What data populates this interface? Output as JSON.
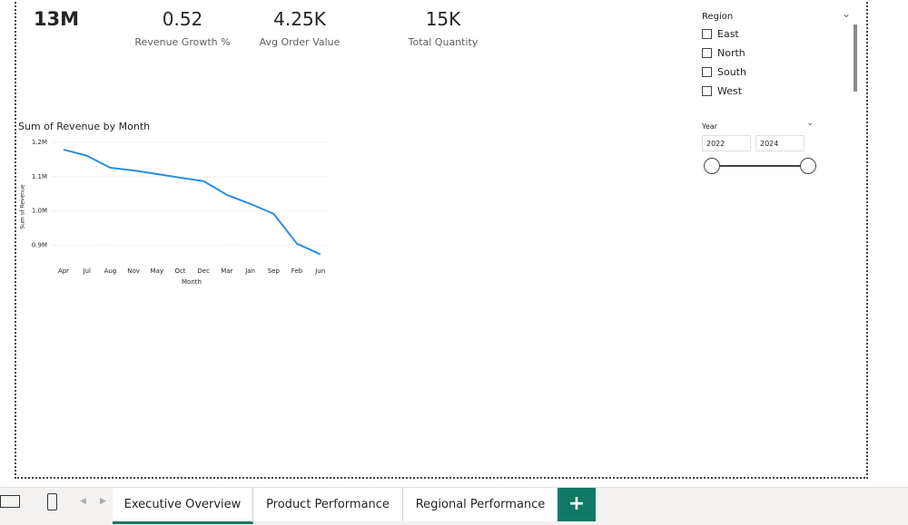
{
  "cards": [
    {
      "value": "13M"
    },
    {
      "value": "0.52",
      "label": "Revenue Growth %"
    },
    {
      "value": "4.25K",
      "label": "Avg Order Value"
    },
    {
      "value": "15K",
      "label": "Total Quantity"
    }
  ],
  "region_slicer": {
    "title": "Region",
    "options": [
      "East",
      "North",
      "South",
      "West"
    ]
  },
  "year_slicer": {
    "title": "Year",
    "start": "2022",
    "end": "2024"
  },
  "tabs": [
    "Executive Overview",
    "Product Performance",
    "Regional Performance"
  ],
  "chart_data": {
    "type": "line",
    "title": "Sum of Revenue by Month",
    "x_label": "Month",
    "y_label": "Sum of Revenue",
    "categories": [
      "Apr",
      "Jul",
      "Aug",
      "Nov",
      "May",
      "Oct",
      "Dec",
      "Mar",
      "Jan",
      "Sep",
      "Feb",
      "Jun"
    ],
    "series": [
      {
        "name": "Sum of Revenue",
        "color": "#2b8ee0",
        "values": [
          1179000,
          1161000,
          1126000,
          1118000,
          1108000,
          1097000,
          1087000,
          1047000,
          1021000,
          992000,
          905000,
          874000
        ]
      }
    ],
    "ylim": [
      850000,
      1200000
    ],
    "yticks": [
      {
        "value": 900000,
        "label": "0.9M"
      },
      {
        "value": 1000000,
        "label": "1.0M"
      },
      {
        "value": 1100000,
        "label": "1.1M"
      },
      {
        "value": 1200000,
        "label": "1.2M"
      }
    ],
    "grid": true
  }
}
